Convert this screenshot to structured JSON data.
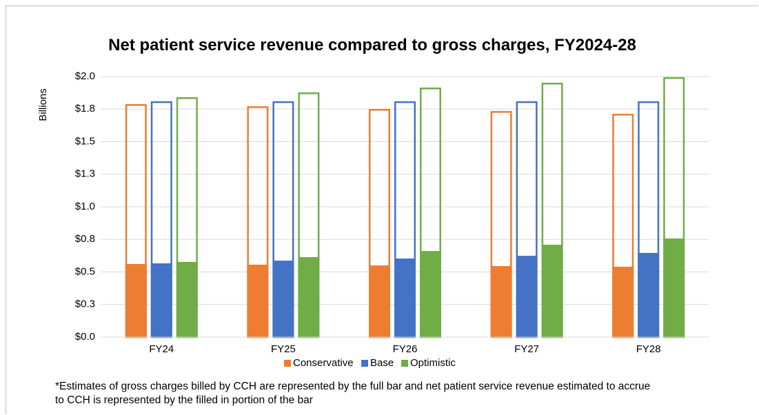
{
  "chart_data": {
    "type": "bar",
    "title": "Net patient service revenue compared to gross charges, FY2024-28",
    "y_label": "Billions",
    "footnote": "*Estimates of gross charges billed by CCH are represented by the full bar and net patient service revenue estimated to accrue to CCH is represented by the filled in portion of the bar",
    "categories": [
      "FY24",
      "FY25",
      "FY26",
      "FY27",
      "FY28"
    ],
    "series": [
      {
        "name": "Conservative",
        "color": "#ed7d31",
        "values": [
          0.561,
          0.556,
          0.55,
          0.545,
          0.54
        ],
        "gross": [
          1.788,
          1.772,
          1.751,
          1.735,
          1.714
        ]
      },
      {
        "name": "Base",
        "color": "#4472c4",
        "values": [
          0.566,
          0.587,
          0.603,
          0.624,
          0.646
        ],
        "gross": [
          1.81,
          1.81,
          1.81,
          1.81,
          1.81
        ]
      },
      {
        "name": "Optimistic",
        "color": "#70ad47",
        "values": [
          0.577,
          0.614,
          0.661,
          0.709,
          0.757
        ],
        "gross": [
          1.841,
          1.878,
          1.915,
          1.952,
          1.995
        ]
      }
    ],
    "ylim": [
      0,
      2
    ],
    "yticks": [
      {
        "value": 0,
        "label": "$0.0"
      },
      {
        "value": 0.25,
        "label": "$0.3"
      },
      {
        "value": 0.5,
        "label": "$0.5"
      },
      {
        "value": 0.75,
        "label": "$0.8"
      },
      {
        "value": 1,
        "label": "$1.0"
      },
      {
        "value": 1.25,
        "label": "$1.3"
      },
      {
        "value": 1.5,
        "label": "$1.5"
      },
      {
        "value": 1.75,
        "label": "$1.8"
      },
      {
        "value": 2,
        "label": "$2.0"
      }
    ],
    "grid": true,
    "legend": "bottom"
  }
}
